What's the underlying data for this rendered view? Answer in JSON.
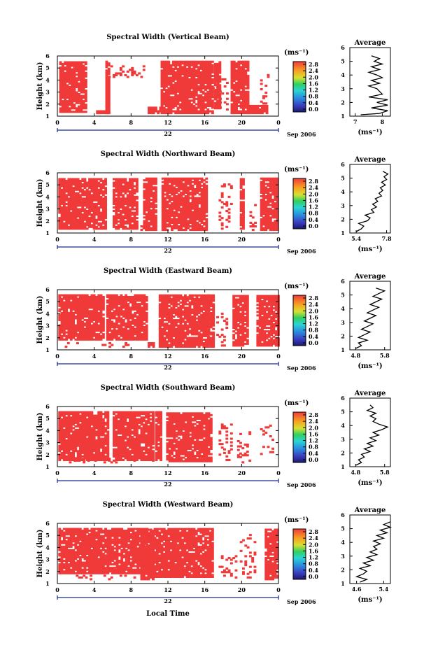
{
  "figure": {
    "x_axis_label": "Local Time",
    "date_label": "Sep 2006",
    "day_label": "22",
    "y_axis_label": "Height (km)",
    "avg_title": "Average",
    "colorbar_unit": "(ms⁻¹)",
    "avg_unit": "(ms⁻¹)"
  },
  "chart_data": [
    {
      "type": "heatmap",
      "title": "Spectral Width (Vertical Beam)",
      "xlabel": "",
      "ylabel": "Height (km)",
      "x_ticks": [
        "0",
        "4",
        "8",
        "12",
        "16",
        "20",
        "0"
      ],
      "y_ticks": [
        "1",
        "2",
        "3",
        "4",
        "5",
        "6"
      ],
      "xlim": [
        0,
        24
      ],
      "ylim": [
        1,
        6
      ],
      "colorbar_ticks": [
        "0.0",
        "0.4",
        "0.8",
        "1.2",
        "1.6",
        "2.0",
        "2.4",
        "2.8"
      ],
      "fill_color": "#f03a3a",
      "data_intervals_hours": [
        [
          0.2,
          3.2,
          1.3,
          5.5
        ],
        [
          5.2,
          5.5,
          1.2,
          5.5
        ],
        [
          4.2,
          5.5,
          1.2,
          1.4
        ],
        [
          9.8,
          11.3,
          1.2,
          1.7
        ],
        [
          11.2,
          16.8,
          1.2,
          5.5
        ],
        [
          17.0,
          17.6,
          1.6,
          5.5
        ],
        [
          18.8,
          20.7,
          1.2,
          5.5
        ],
        [
          20.6,
          22.8,
          1.2,
          1.8
        ]
      ],
      "sparse_intervals_hours": [
        [
          5.5,
          9.5,
          4.2,
          5.2
        ],
        [
          16.8,
          18.5,
          1.5,
          4.0
        ],
        [
          22.0,
          23.0,
          2.0,
          4.5
        ]
      ],
      "avg_xticks": [
        "7",
        "8"
      ],
      "avg_xlim": [
        6.8,
        8.3
      ],
      "avg_profile": {
        "height": [
          1.1,
          1.2,
          1.4,
          1.6,
          1.8,
          2.0,
          2.2,
          2.4,
          2.6,
          2.8,
          3.0,
          3.2,
          3.4,
          3.6,
          3.8,
          4.0,
          4.2,
          4.4,
          4.6,
          4.8,
          5.0,
          5.2,
          5.4
        ],
        "value": [
          7.2,
          7.9,
          8.2,
          7.6,
          8.2,
          7.8,
          8.2,
          7.5,
          8.0,
          7.9,
          7.8,
          7.5,
          7.9,
          7.6,
          8.0,
          7.8,
          7.5,
          7.9,
          7.6,
          8.0,
          7.7,
          7.9,
          7.6
        ]
      }
    },
    {
      "type": "heatmap",
      "title": "Spectral Width (Northward Beam)",
      "xlabel": "",
      "ylabel": "Height (km)",
      "x_ticks": [
        "0",
        "4",
        "8",
        "12",
        "16",
        "20",
        "0"
      ],
      "y_ticks": [
        "1",
        "2",
        "3",
        "4",
        "5",
        "6"
      ],
      "xlim": [
        0,
        24
      ],
      "ylim": [
        1,
        6
      ],
      "colorbar_ticks": [
        "0.0",
        "0.4",
        "0.8",
        "1.2",
        "1.6",
        "2.0",
        "2.4",
        "2.8"
      ],
      "fill_color": "#f03a3a",
      "data_intervals_hours": [
        [
          0.1,
          5.3,
          1.3,
          5.5
        ],
        [
          6.0,
          8.7,
          1.3,
          5.5
        ],
        [
          9.3,
          10.7,
          1.2,
          5.5
        ],
        [
          11.3,
          16.3,
          1.2,
          5.5
        ],
        [
          19.8,
          20.2,
          1.3,
          5.5
        ],
        [
          22.0,
          24.0,
          1.2,
          5.5
        ]
      ],
      "sparse_intervals_hours": [
        [
          8.0,
          9.8,
          1.2,
          1.6
        ],
        [
          17.5,
          19.0,
          1.3,
          5.0
        ],
        [
          20.6,
          21.5,
          1.2,
          3.5
        ]
      ],
      "avg_xticks": [
        "5.4",
        "7.8"
      ],
      "avg_xlim": [
        4.9,
        8.1
      ],
      "avg_profile": {
        "height": [
          1.1,
          1.3,
          1.5,
          1.7,
          1.9,
          2.1,
          2.3,
          2.5,
          2.7,
          2.9,
          3.1,
          3.3,
          3.5,
          3.7,
          3.9,
          4.1,
          4.3,
          4.5,
          4.7,
          4.9,
          5.1,
          5.3,
          5.5
        ],
        "value": [
          5.4,
          5.8,
          6.0,
          5.6,
          6.3,
          6.5,
          6.1,
          6.8,
          6.6,
          7.0,
          6.7,
          7.1,
          6.9,
          7.4,
          7.2,
          7.5,
          7.3,
          7.7,
          7.4,
          7.8,
          7.6,
          7.9,
          7.5
        ]
      }
    },
    {
      "type": "heatmap",
      "title": "Spectral Width (Eastward Beam)",
      "xlabel": "",
      "ylabel": "Height (km)",
      "x_ticks": [
        "0",
        "4",
        "8",
        "12",
        "16",
        "20",
        "0"
      ],
      "y_ticks": [
        "1",
        "2",
        "3",
        "4",
        "5",
        "6"
      ],
      "xlim": [
        0,
        24
      ],
      "ylim": [
        1,
        6
      ],
      "colorbar_ticks": [
        "0.0",
        "0.4",
        "0.8",
        "1.2",
        "1.6",
        "2.0",
        "2.4",
        "2.8"
      ],
      "fill_color": "#f03a3a",
      "data_intervals_hours": [
        [
          0.1,
          5.0,
          1.8,
          5.5
        ],
        [
          5.3,
          9.6,
          1.8,
          5.5
        ],
        [
          9.8,
          10.5,
          1.2,
          1.5
        ],
        [
          11.0,
          16.3,
          1.2,
          5.5
        ],
        [
          16.3,
          17.0,
          1.2,
          5.5
        ],
        [
          19.0,
          20.7,
          1.3,
          5.5
        ],
        [
          21.6,
          24.0,
          1.3,
          5.5
        ]
      ],
      "sparse_intervals_hours": [
        [
          0.8,
          8.0,
          1.2,
          1.6
        ],
        [
          17.0,
          18.5,
          1.3,
          4.0
        ]
      ],
      "avg_xticks": [
        "4.8",
        "5.8"
      ],
      "avg_xlim": [
        4.6,
        6.0
      ],
      "avg_profile": {
        "height": [
          1.1,
          1.3,
          1.5,
          1.7,
          1.9,
          2.1,
          2.3,
          2.5,
          2.7,
          2.9,
          3.1,
          3.3,
          3.5,
          3.7,
          3.9,
          4.1,
          4.3,
          4.5,
          4.7,
          4.9,
          5.1,
          5.3,
          5.5
        ],
        "value": [
          4.8,
          5.0,
          4.9,
          5.2,
          4.9,
          5.1,
          5.3,
          5.0,
          5.2,
          5.4,
          5.1,
          5.3,
          5.5,
          5.2,
          5.4,
          5.6,
          5.3,
          5.5,
          5.7,
          5.4,
          5.6,
          5.8,
          5.5
        ]
      }
    },
    {
      "type": "heatmap",
      "title": "Spectral Width (Southward Beam)",
      "xlabel": "",
      "ylabel": "Height (km)",
      "x_ticks": [
        "0",
        "4",
        "8",
        "12",
        "16",
        "20",
        "0"
      ],
      "y_ticks": [
        "1",
        "2",
        "3",
        "4",
        "5",
        "6"
      ],
      "xlim": [
        0,
        24
      ],
      "ylim": [
        1,
        6
      ],
      "colorbar_ticks": [
        "0.0",
        "0.4",
        "0.8",
        "1.2",
        "1.6",
        "2.0",
        "2.4",
        "2.8"
      ],
      "fill_color": "#f03a3a",
      "data_intervals_hours": [
        [
          0.1,
          5.6,
          1.5,
          5.5
        ],
        [
          6.0,
          10.3,
          1.5,
          5.5
        ],
        [
          10.6,
          11.2,
          1.5,
          5.5
        ],
        [
          11.8,
          16.3,
          1.4,
          5.5
        ],
        [
          16.3,
          16.8,
          1.4,
          5.5
        ]
      ],
      "sparse_intervals_hours": [
        [
          0.5,
          10.5,
          1.3,
          1.7
        ],
        [
          17.5,
          19.0,
          1.5,
          4.5
        ],
        [
          19.5,
          21.0,
          1.3,
          3.8
        ],
        [
          22.0,
          23.5,
          2.0,
          4.5
        ]
      ],
      "avg_xticks": [
        "4.8",
        "5.8"
      ],
      "avg_xlim": [
        4.6,
        6.0
      ],
      "avg_profile": {
        "height": [
          1.1,
          1.3,
          1.5,
          1.7,
          1.9,
          2.1,
          2.3,
          2.5,
          2.7,
          2.9,
          3.1,
          3.3,
          3.5,
          3.7,
          3.9,
          4.1,
          4.3,
          4.5,
          4.7,
          4.9,
          5.1,
          5.3,
          5.5
        ],
        "value": [
          4.8,
          5.0,
          4.9,
          5.1,
          5.0,
          5.3,
          5.1,
          5.4,
          5.2,
          5.5,
          5.3,
          5.6,
          5.4,
          5.7,
          5.9,
          5.6,
          5.4,
          5.5,
          5.3,
          5.5,
          5.2,
          5.4,
          5.3
        ]
      }
    },
    {
      "type": "heatmap",
      "title": "Spectral Width (Westward Beam)",
      "xlabel": "Local Time",
      "ylabel": "Height (km)",
      "x_ticks": [
        "0",
        "4",
        "8",
        "12",
        "16",
        "20",
        "0"
      ],
      "y_ticks": [
        "1",
        "2",
        "3",
        "4",
        "5",
        "6"
      ],
      "xlim": [
        0,
        24
      ],
      "ylim": [
        1,
        6
      ],
      "colorbar_ticks": [
        "0.0",
        "0.4",
        "0.8",
        "1.2",
        "1.6",
        "2.0",
        "2.4",
        "2.8"
      ],
      "fill_color": "#f03a3a",
      "data_intervals_hours": [
        [
          0.1,
          9.7,
          1.8,
          5.5
        ],
        [
          10.2,
          16.8,
          1.5,
          5.5
        ],
        [
          9.0,
          10.5,
          1.3,
          5.5
        ],
        [
          22.5,
          24.0,
          1.3,
          5.5
        ]
      ],
      "sparse_intervals_hours": [
        [
          0.5,
          9.0,
          1.3,
          1.7
        ],
        [
          17.5,
          19.5,
          1.3,
          3.5
        ],
        [
          19.8,
          21.5,
          1.3,
          5.0
        ]
      ],
      "avg_xticks": [
        "4.6",
        "5.4"
      ],
      "avg_xlim": [
        4.4,
        5.6
      ],
      "avg_profile": {
        "height": [
          1.1,
          1.3,
          1.5,
          1.7,
          1.9,
          2.1,
          2.3,
          2.5,
          2.7,
          2.9,
          3.1,
          3.3,
          3.5,
          3.7,
          3.9,
          4.1,
          4.3,
          4.5,
          4.7,
          4.9,
          5.1,
          5.3,
          5.5
        ],
        "value": [
          4.7,
          4.9,
          4.6,
          4.8,
          4.9,
          4.7,
          5.0,
          4.8,
          5.1,
          4.9,
          5.2,
          5.0,
          5.2,
          5.1,
          5.3,
          5.1,
          5.4,
          5.2,
          5.5,
          5.3,
          5.6,
          5.4,
          5.6
        ]
      }
    }
  ]
}
